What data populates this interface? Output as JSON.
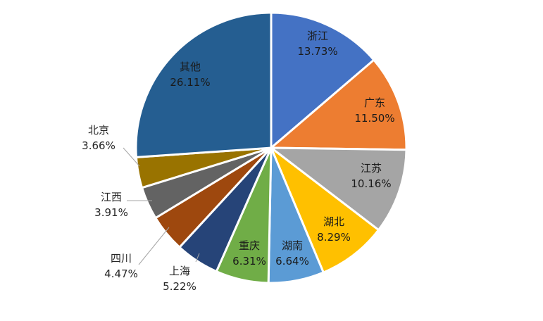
{
  "chart_data": {
    "type": "pie",
    "title": "",
    "start_angle_deg": 0,
    "direction": "clockwise",
    "slices": [
      {
        "name": "浙江",
        "value": 13.73,
        "pct": "13.73%",
        "color": "#4472C4"
      },
      {
        "name": "广东",
        "value": 11.5,
        "pct": "11.50%",
        "color": "#ED7D31"
      },
      {
        "name": "江苏",
        "value": 10.16,
        "pct": "10.16%",
        "color": "#A5A5A5"
      },
      {
        "name": "湖北",
        "value": 8.29,
        "pct": "8.29%",
        "color": "#FFC000"
      },
      {
        "name": "湖南",
        "value": 6.64,
        "pct": "6.64%",
        "color": "#5B9BD5"
      },
      {
        "name": "重庆",
        "value": 6.31,
        "pct": "6.31%",
        "color": "#70AD47"
      },
      {
        "name": "上海",
        "value": 5.22,
        "pct": "5.22%",
        "color": "#264478"
      },
      {
        "name": "四川",
        "value": 4.47,
        "pct": "4.47%",
        "color": "#9E480E"
      },
      {
        "name": "江西",
        "value": 3.91,
        "pct": "3.91%",
        "color": "#636363"
      },
      {
        "name": "北京",
        "value": 3.66,
        "pct": "3.66%",
        "color": "#997300"
      },
      {
        "name": "其他",
        "value": 26.11,
        "pct": "26.11%",
        "color": "#255E91"
      }
    ]
  }
}
